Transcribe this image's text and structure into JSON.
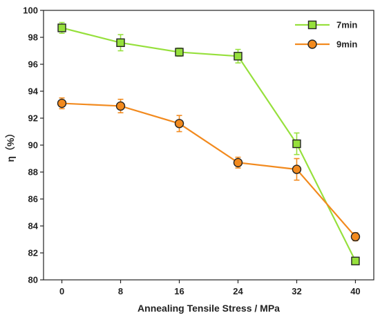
{
  "chart_data": {
    "type": "line",
    "xlabel": "Annealing Tensile Stress / MPa",
    "ylabel": "η（%）",
    "x": [
      0,
      8,
      16,
      24,
      32,
      40
    ],
    "xticks": [
      "0",
      "8",
      "16",
      "24",
      "32",
      "40"
    ],
    "xlim": [
      -2.5,
      42.5
    ],
    "ylim": [
      80,
      100
    ],
    "yticks": [
      "80",
      "82",
      "84",
      "86",
      "88",
      "90",
      "92",
      "94",
      "96",
      "98",
      "100"
    ],
    "grid": false,
    "legend_position": "top-right",
    "series": [
      {
        "name": "7min",
        "marker": "square",
        "line_color": "#96e03c",
        "marker_fill": "#96e03c",
        "values": [
          98.7,
          97.6,
          96.9,
          96.6,
          90.1,
          81.4
        ],
        "errors": [
          0.4,
          0.6,
          0.3,
          0.5,
          0.8,
          0.2
        ]
      },
      {
        "name": "9min",
        "marker": "circle",
        "line_color": "#f28a1e",
        "marker_fill": "#f28a1e",
        "values": [
          93.1,
          92.9,
          91.6,
          88.7,
          88.2,
          83.2
        ],
        "errors": [
          0.4,
          0.5,
          0.6,
          0.4,
          0.8,
          0.3
        ]
      }
    ]
  }
}
